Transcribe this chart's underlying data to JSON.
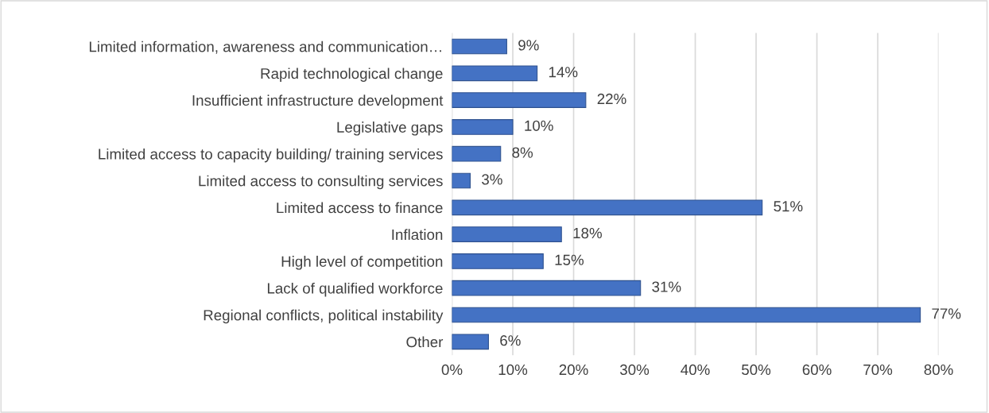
{
  "chart_data": {
    "type": "bar",
    "orientation": "horizontal",
    "categories": [
      "Limited information, awareness and communication…",
      "Rapid technological change",
      "Insufficient infrastructure development",
      "Legislative gaps",
      "Limited access to capacity building/ training services",
      "Limited access to consulting services",
      "Limited access to finance",
      "Inflation",
      "High level of competition",
      "Lack of qualified workforce",
      "Regional conflicts, political instability",
      "Other"
    ],
    "values": [
      9,
      14,
      22,
      10,
      8,
      3,
      51,
      18,
      15,
      31,
      77,
      6
    ],
    "value_labels": [
      "9%",
      "14%",
      "22%",
      "10%",
      "8%",
      "3%",
      "51%",
      "18%",
      "15%",
      "31%",
      "77%",
      "6%"
    ],
    "color": "#4472c4",
    "xlim": [
      0,
      80
    ],
    "xticks": [
      {
        "value": 0,
        "label": "0%"
      },
      {
        "value": 10,
        "label": "10%"
      },
      {
        "value": 20,
        "label": "20%"
      },
      {
        "value": 30,
        "label": "30%"
      },
      {
        "value": 40,
        "label": "40%"
      },
      {
        "value": 50,
        "label": "50%"
      },
      {
        "value": 60,
        "label": "60%"
      },
      {
        "value": 70,
        "label": "70%"
      },
      {
        "value": 80,
        "label": "80%"
      }
    ],
    "grid": "x"
  }
}
